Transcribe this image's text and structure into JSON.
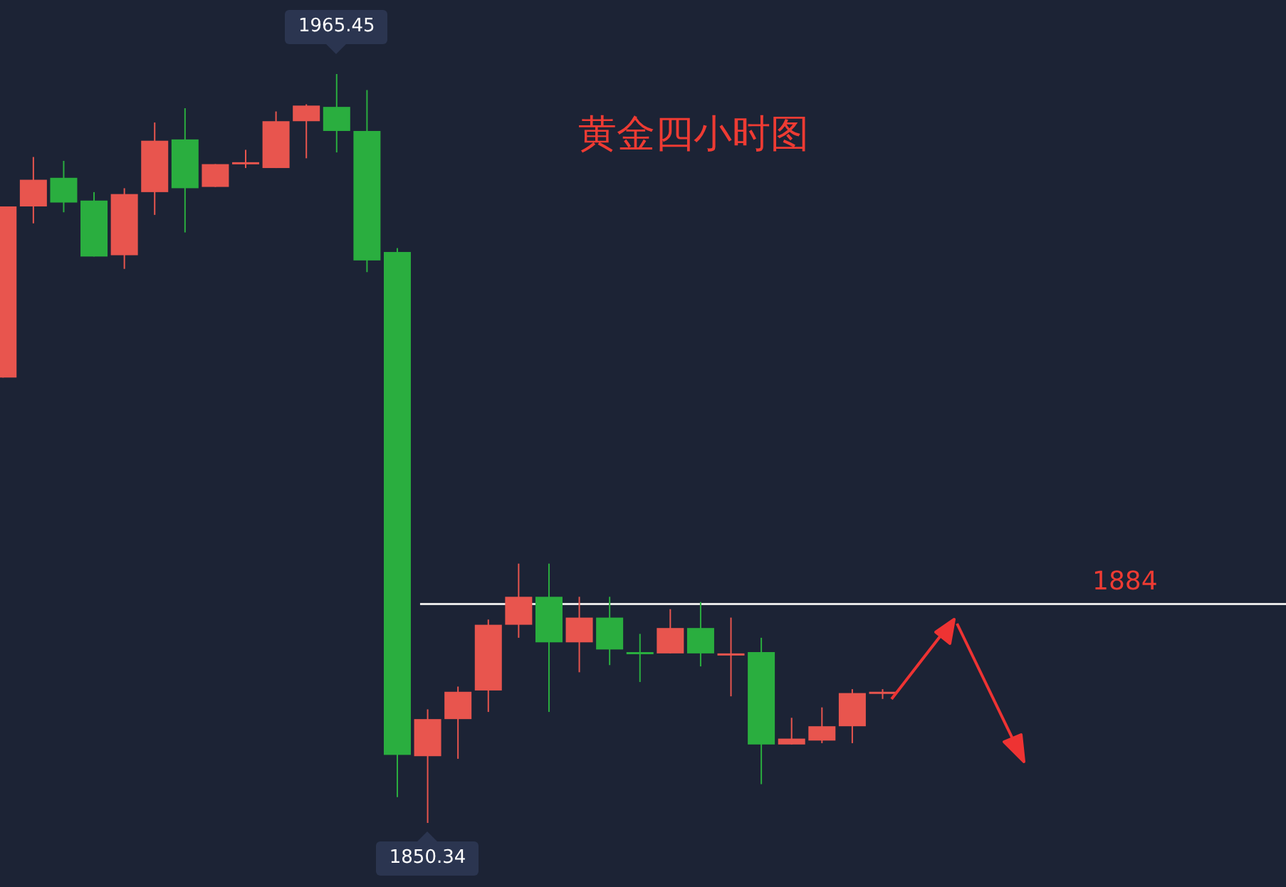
{
  "chart_data": {
    "type": "candlestick",
    "title": "黄金四小时图",
    "categories": [
      null,
      null,
      null,
      null,
      null,
      null,
      null,
      null,
      null,
      null,
      null,
      null,
      null,
      null,
      null,
      null,
      null,
      null,
      null,
      null,
      null,
      null,
      null,
      null,
      null,
      null,
      null,
      null,
      null,
      null
    ],
    "ohlc": [
      [
        1918.8,
        1945.1,
        1918.8,
        1945.1
      ],
      [
        1945.1,
        1952.7,
        1942.5,
        1949.2
      ],
      [
        1949.5,
        1952.1,
        1944.2,
        1945.7
      ],
      [
        1946.0,
        1947.3,
        1937.4,
        1937.4
      ],
      [
        1937.6,
        1947.9,
        1935.5,
        1947.0
      ],
      [
        1947.3,
        1958.0,
        1943.8,
        1955.2
      ],
      [
        1955.4,
        1960.2,
        1941.1,
        1947.9
      ],
      [
        1948.1,
        1951.6,
        1948.1,
        1951.6
      ],
      [
        1951.9,
        1953.8,
        1951.0,
        1951.9
      ],
      [
        1951.0,
        1959.7,
        1951.0,
        1958.2
      ],
      [
        1958.2,
        1960.8,
        1952.5,
        1960.6
      ],
      [
        1960.4,
        1965.45,
        1953.4,
        1956.7
      ],
      [
        1956.7,
        1963.0,
        1935.0,
        1936.8
      ],
      [
        1938.1,
        1938.7,
        1854.3,
        1860.8
      ],
      [
        1860.6,
        1867.8,
        1850.34,
        1866.3
      ],
      [
        1866.3,
        1871.3,
        1860.2,
        1870.5
      ],
      [
        1870.7,
        1881.6,
        1867.4,
        1880.8
      ],
      [
        1880.8,
        1890.2,
        1878.8,
        1885.1
      ],
      [
        1885.1,
        1890.2,
        1867.4,
        1878.1
      ],
      [
        1878.1,
        1885.1,
        1873.5,
        1881.9
      ],
      [
        1881.9,
        1885.1,
        1874.6,
        1877.0
      ],
      [
        1876.6,
        1879.4,
        1872.0,
        1876.6
      ],
      [
        1876.4,
        1883.2,
        1876.4,
        1880.3
      ],
      [
        1880.3,
        1884.3,
        1874.4,
        1876.4
      ],
      [
        1876.4,
        1881.9,
        1869.8,
        1876.4
      ],
      [
        1876.6,
        1878.8,
        1856.3,
        1862.4
      ],
      [
        1862.4,
        1866.5,
        1862.4,
        1863.3
      ],
      [
        1863.0,
        1868.1,
        1862.6,
        1865.2
      ],
      [
        1865.2,
        1870.9,
        1862.6,
        1870.3
      ],
      [
        1870.5,
        1870.9,
        1869.4,
        1870.5
      ]
    ],
    "colors": [
      "#e8554e",
      "#e8554e",
      "#2aae3f",
      "#2aae3f",
      "#e8554e",
      "#e8554e",
      "#2aae3f",
      "#e8554e",
      "#e8554e",
      "#e8554e",
      "#e8554e",
      "#2aae3f",
      "#2aae3f",
      "#2aae3f",
      "#e8554e",
      "#e8554e",
      "#e8554e",
      "#e8554e",
      "#2aae3f",
      "#e8554e",
      "#2aae3f",
      "#2aae3f",
      "#e8554e",
      "#2aae3f",
      "#e8554e",
      "#2aae3f",
      "#e8554e",
      "#e8554e",
      "#e8554e",
      "#e8554e"
    ],
    "ref_lines": [
      {
        "axis": "y",
        "value": 1884,
        "label": "1884",
        "color": "#e6e6e6"
      }
    ],
    "annotations": [
      {
        "text": "1965.45",
        "y": 1965.45
      },
      {
        "text": "1850.34",
        "y": 1850.34
      }
    ]
  }
}
